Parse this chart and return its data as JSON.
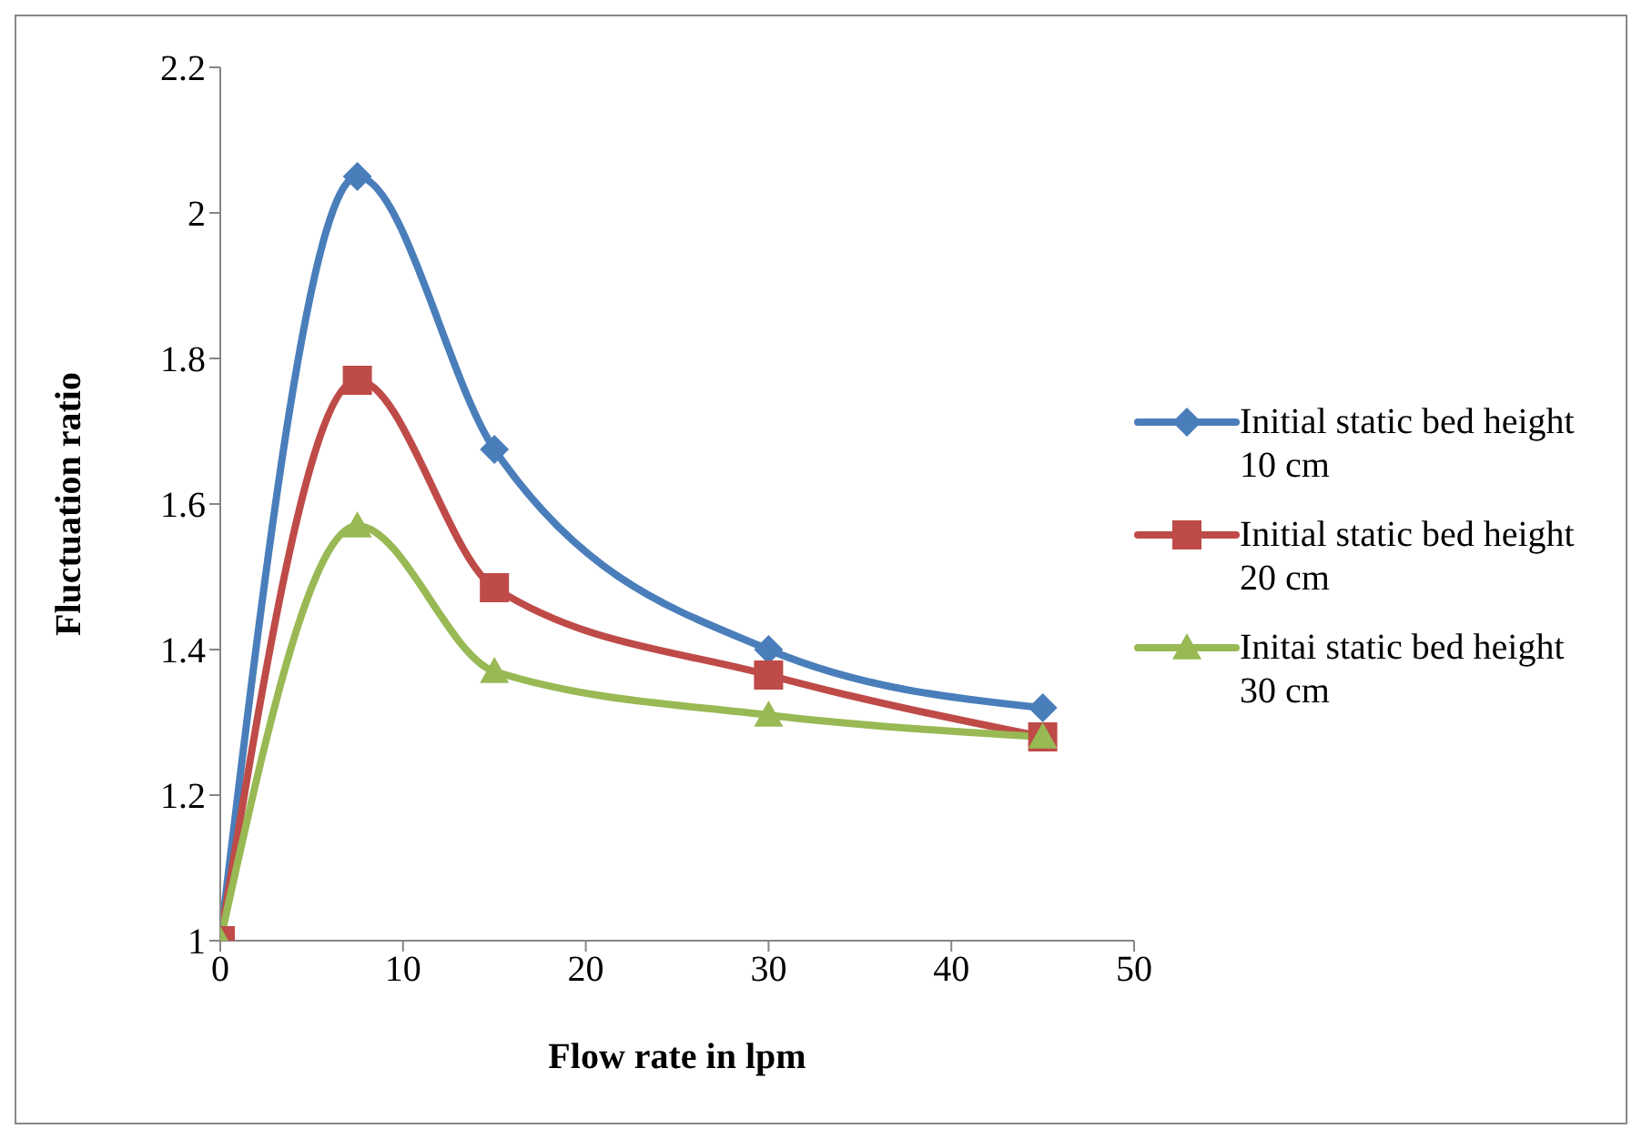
{
  "chart_data": {
    "type": "line",
    "xlabel": "Flow rate in lpm",
    "ylabel": "Fluctuation ratio",
    "x": [
      0,
      7.5,
      15,
      30,
      45
    ],
    "series": [
      {
        "name": "Initial static bed height 10 cm",
        "color": "#4a7ebb",
        "values": [
          1,
          2.05,
          1.675,
          1.4,
          1.32
        ],
        "marker": "diamond"
      },
      {
        "name": "Initial static bed height 20 cm",
        "color": "#be4b48",
        "values": [
          1,
          1.77,
          1.485,
          1.365,
          1.28
        ],
        "marker": "square"
      },
      {
        "name": "Initai static bed height 30 cm",
        "color": "#98b954",
        "values": [
          1,
          1.57,
          1.37,
          1.31,
          1.28
        ],
        "marker": "triangle"
      }
    ],
    "xlim": [
      0,
      50
    ],
    "xticks": [
      0,
      10,
      20,
      30,
      40,
      50
    ],
    "ylim": [
      1,
      2.2
    ],
    "yticks": [
      1,
      1.2,
      1.4,
      1.6,
      1.8,
      2,
      2.2
    ],
    "grid": false,
    "legend": "right",
    "line_style": "solid"
  }
}
